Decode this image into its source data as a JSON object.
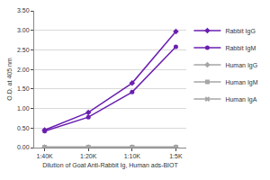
{
  "chart_data": {
    "type": "line",
    "x_label": "Dilution of Goat Anti-Rabbit Ig, Human ads-BIOT",
    "y_label": "O.D. at 405 nm",
    "categories": [
      "1:40K",
      "1:20K",
      "1:10K",
      "1:5K"
    ],
    "series": [
      {
        "name": "Rabbit IgG",
        "color": "#6a1fb0",
        "marker": "diamond",
        "line_style": "solid",
        "values": [
          0.45,
          0.9,
          1.65,
          2.97
        ]
      },
      {
        "name": "Rabbit IgM",
        "color": "#6a1fb0",
        "marker": "circle",
        "line_style": "solid",
        "values": [
          0.42,
          0.78,
          1.42,
          2.58
        ]
      },
      {
        "name": "Human IgG",
        "color": "#a6a6a6",
        "marker": "diamond",
        "line_style": "solid",
        "values": [
          0.01,
          0.01,
          0.01,
          0.01
        ]
      },
      {
        "name": "Human IgM",
        "color": "#a6a6a6",
        "marker": "square",
        "line_style": "solid",
        "values": [
          0.01,
          0.01,
          0.01,
          0.01
        ]
      },
      {
        "name": "Human IgA",
        "color": "#a6a6a6",
        "marker": "x",
        "line_style": "solid",
        "values": [
          0.01,
          0.01,
          0.01,
          0.01
        ]
      }
    ],
    "ylim": [
      0,
      3.5
    ],
    "yticks": [
      {
        "value": 0,
        "label": "0.00"
      },
      {
        "value": 0.5,
        "label": "0.50"
      },
      {
        "value": 1,
        "label": "1.00"
      },
      {
        "value": 1.5,
        "label": "1.50"
      },
      {
        "value": 2,
        "label": "2.00"
      },
      {
        "value": 2.5,
        "label": "2.50"
      },
      {
        "value": 3,
        "label": "3.00"
      },
      {
        "value": 3.5,
        "label": "3.50"
      }
    ],
    "grid": true,
    "legend": "right"
  }
}
